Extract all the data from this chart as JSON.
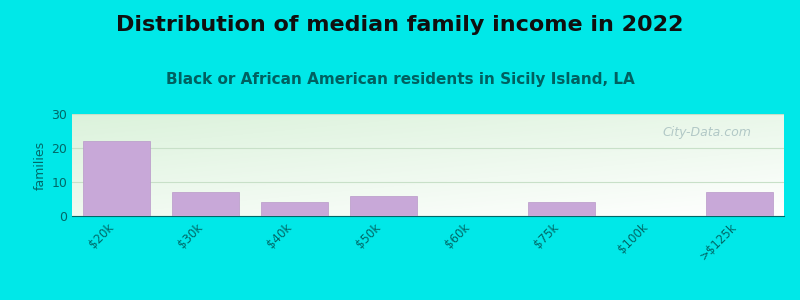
{
  "title": "Distribution of median family income in 2022",
  "subtitle": "Black or African American residents in Sicily Island, LA",
  "categories": [
    "$20k",
    "$30k",
    "$40k",
    "$50k",
    "$60k",
    "$75k",
    "$100k",
    ">$125k"
  ],
  "values": [
    22,
    7,
    4,
    6,
    0,
    4,
    0,
    7
  ],
  "bar_color": "#c8a8d8",
  "bar_edge_color": "#b898c8",
  "background_color": "#00e8e8",
  "plot_bg_top_left": "#daf0da",
  "plot_bg_bottom_right": "#f8fff8",
  "ylabel": "families",
  "ylim": [
    0,
    30
  ],
  "yticks": [
    0,
    10,
    20,
    30
  ],
  "title_fontsize": 16,
  "title_color": "#101010",
  "subtitle_fontsize": 11,
  "subtitle_color": "#006060",
  "watermark_text": "City-Data.com",
  "watermark_color": "#a8c0c0",
  "grid_color": "#c8e0c8",
  "tick_label_color": "#006868",
  "axis_color": "#006868"
}
